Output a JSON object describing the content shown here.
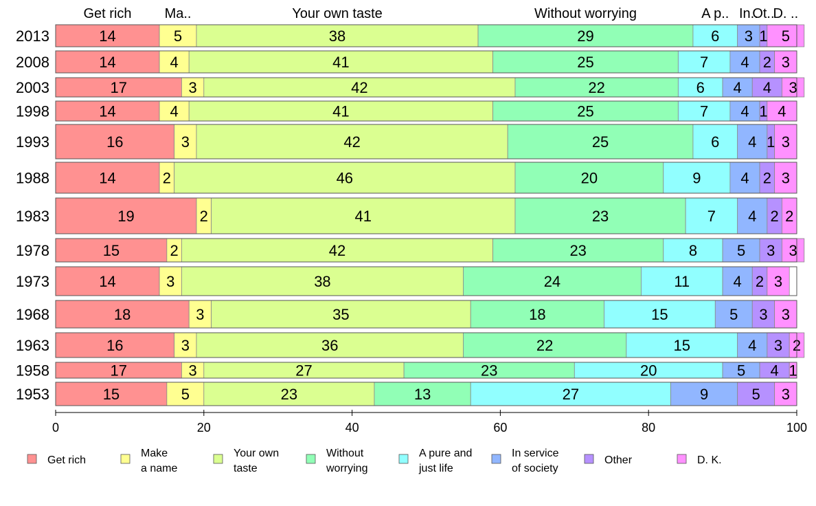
{
  "chart_data": {
    "type": "bar",
    "orientation": "horizontal",
    "stacked": true,
    "title": "",
    "xlabel": "",
    "ylabel": "",
    "xlim": [
      0,
      100
    ],
    "x_ticks": [
      0,
      20,
      40,
      60,
      80,
      100
    ],
    "grid": false,
    "legend_position": "bottom",
    "categories": [
      "2013",
      "2008",
      "2003",
      "1998",
      "1993",
      "1988",
      "1983",
      "1978",
      "1973",
      "1968",
      "1963",
      "1958",
      "1953"
    ],
    "header_labels": [
      "Get rich",
      "Ma..",
      "Your own taste",
      "Without worrying",
      "A p..",
      "In..",
      "Ot..",
      "D. .."
    ],
    "series": [
      {
        "name": "Get rich",
        "legend_lines": [
          "Get rich"
        ],
        "color": "#ff9191",
        "values": [
          14,
          14,
          17,
          14,
          16,
          14,
          19,
          15,
          14,
          18,
          16,
          17,
          15
        ]
      },
      {
        "name": "Make a name",
        "legend_lines": [
          "Make",
          "a name"
        ],
        "color": "#ffff91",
        "values": [
          5,
          4,
          3,
          4,
          3,
          2,
          2,
          2,
          3,
          3,
          3,
          3,
          5
        ]
      },
      {
        "name": "Your own taste",
        "legend_lines": [
          "Your own",
          "taste"
        ],
        "color": "#dbff91",
        "values": [
          38,
          41,
          42,
          41,
          42,
          46,
          41,
          42,
          38,
          35,
          36,
          27,
          23
        ]
      },
      {
        "name": "Without worrying",
        "legend_lines": [
          "Without",
          "worrying"
        ],
        "color": "#91ffb6",
        "values": [
          29,
          25,
          22,
          25,
          25,
          20,
          23,
          23,
          24,
          18,
          22,
          23,
          13
        ]
      },
      {
        "name": "A pure and just life",
        "legend_lines": [
          "A pure and",
          "just life"
        ],
        "color": "#91ffff",
        "values": [
          6,
          7,
          6,
          7,
          6,
          9,
          7,
          8,
          11,
          15,
          15,
          20,
          27
        ]
      },
      {
        "name": "In service of society",
        "legend_lines": [
          "In service",
          "of society"
        ],
        "color": "#91b6ff",
        "values": [
          3,
          4,
          4,
          4,
          4,
          4,
          4,
          5,
          4,
          5,
          4,
          5,
          9
        ]
      },
      {
        "name": "Other",
        "legend_lines": [
          "Other"
        ],
        "color": "#b691ff",
        "values": [
          1,
          2,
          4,
          1,
          1,
          2,
          2,
          3,
          2,
          3,
          3,
          4,
          5
        ]
      },
      {
        "name": "D. K.",
        "legend_lines": [
          "D. K."
        ],
        "color": "#ff91ff",
        "values": [
          5,
          3,
          3,
          4,
          3,
          3,
          2,
          3,
          3,
          3,
          2,
          1,
          3
        ]
      }
    ]
  }
}
